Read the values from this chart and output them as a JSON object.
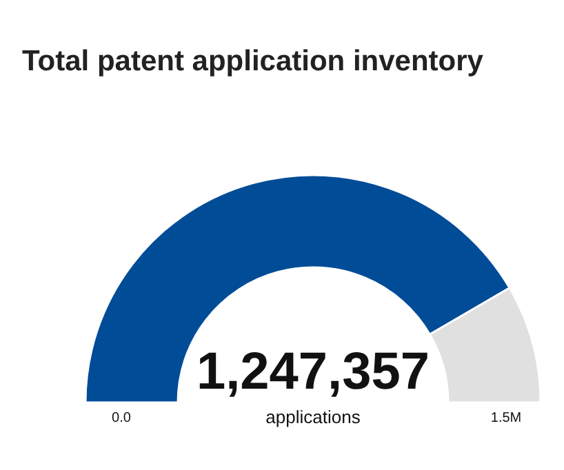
{
  "chart_data": {
    "type": "donut",
    "title": "Total patent application inventory",
    "categories": [
      null,
      null
    ],
    "values": [
      83.2,
      16.8
    ],
    "colors": [
      "#004c97",
      "#e0e0e0"
    ],
    "annotations": [
      "1,247,357",
      "applications",
      "0.0",
      "1.5M"
    ]
  }
}
